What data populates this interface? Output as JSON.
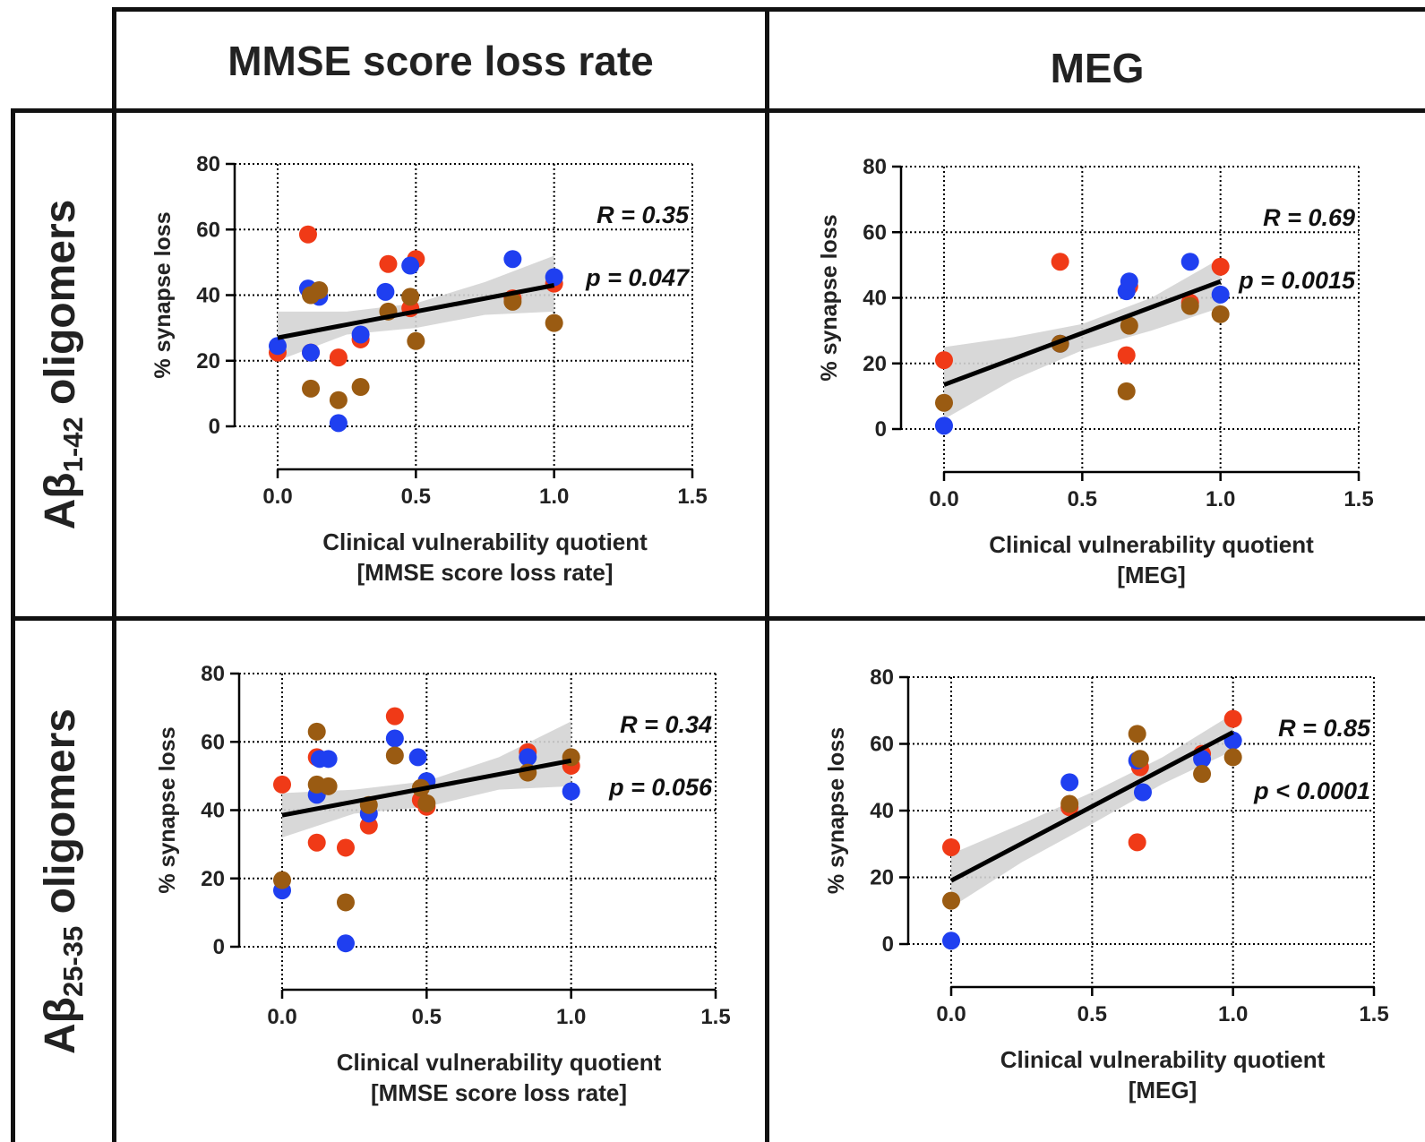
{
  "columns": [
    "MMSE score loss rate",
    "MEG"
  ],
  "rows": [
    {
      "label_prefix": "Aβ",
      "label_sub": "1-42",
      "label_suffix": " oligomers"
    },
    {
      "label_prefix": "Aβ",
      "label_sub": "25-35",
      "label_suffix": " oligomers"
    }
  ],
  "colors": {
    "red": "#f03a17",
    "blue": "#1f3ff0",
    "brown": "#9a5b12",
    "band": "#d4d4d4",
    "line": "#000000"
  },
  "chart_data": [
    {
      "type": "scatter",
      "ylabel": "% synapse loss",
      "xlabel_line1": "Clinical vulnerability quotient",
      "xlabel_line2": "[MMSE score loss rate]",
      "xlim": [
        0,
        1.5
      ],
      "ylim": [
        0,
        80
      ],
      "xticks": [
        "0.0",
        "0.5",
        "1.0",
        "1.5"
      ],
      "yticks": [
        "0",
        "20",
        "40",
        "60",
        "80"
      ],
      "grid": true,
      "r_text": "R = 0.35",
      "p_text": "p = 0.047",
      "fit": {
        "x": [
          0,
          1.0
        ],
        "y": [
          27,
          43
        ]
      },
      "band": {
        "x": [
          0,
          0.25,
          0.5,
          0.75,
          1.0
        ],
        "upper": [
          35,
          35,
          37.5,
          44,
          52
        ],
        "lower": [
          20,
          28,
          30,
          34,
          35
        ]
      },
      "series": [
        {
          "color": "red",
          "x": [
            0,
            0.11,
            0.12,
            0.22,
            0.3,
            0.4,
            0.48,
            0.5,
            0.85,
            1.0
          ],
          "y": [
            22.5,
            58.5,
            22.5,
            21,
            26.5,
            49.5,
            36,
            51,
            39,
            43.5
          ]
        },
        {
          "color": "blue",
          "x": [
            0,
            0.11,
            0.12,
            0.15,
            0.22,
            0.3,
            0.39,
            0.48,
            0.85,
            1.0
          ],
          "y": [
            24.5,
            42,
            22.5,
            39.5,
            1,
            28,
            41,
            49,
            51,
            45.5
          ]
        },
        {
          "color": "brown",
          "x": [
            0.12,
            0.12,
            0.15,
            0.22,
            0.3,
            0.4,
            0.48,
            0.5,
            0.85,
            1.0
          ],
          "y": [
            11.5,
            40,
            41.5,
            8,
            12,
            35,
            39.5,
            26,
            38,
            31.5
          ]
        }
      ]
    },
    {
      "type": "scatter",
      "ylabel": "% synapse loss",
      "xlabel_line1": "Clinical vulnerability quotient",
      "xlabel_line2": "[MEG]",
      "xlim": [
        0,
        1.5
      ],
      "ylim": [
        0,
        80
      ],
      "xticks": [
        "0.0",
        "0.5",
        "1.0",
        "1.5"
      ],
      "yticks": [
        "0",
        "20",
        "40",
        "60",
        "80"
      ],
      "grid": true,
      "r_text": "R = 0.69",
      "p_text": "p = 0.0015",
      "fit": {
        "x": [
          0,
          1.0
        ],
        "y": [
          13.5,
          45
        ]
      },
      "band": {
        "x": [
          0,
          0.25,
          0.5,
          0.75,
          1.0
        ],
        "upper": [
          25,
          28,
          32,
          40,
          52
        ],
        "lower": [
          3,
          15,
          24,
          30,
          37
        ]
      },
      "series": [
        {
          "color": "red",
          "x": [
            0,
            0.42,
            0.66,
            0.67,
            0.89,
            1.0
          ],
          "y": [
            21,
            51,
            22.5,
            43.5,
            38.5,
            49.5
          ]
        },
        {
          "color": "blue",
          "x": [
            0,
            0.42,
            0.66,
            0.67,
            0.89,
            1.0
          ],
          "y": [
            1,
            26,
            42,
            45,
            51,
            41
          ]
        },
        {
          "color": "brown",
          "x": [
            0,
            0.42,
            0.66,
            0.67,
            0.89,
            1.0
          ],
          "y": [
            8,
            26,
            11.5,
            31.5,
            37.5,
            35
          ]
        }
      ]
    },
    {
      "type": "scatter",
      "ylabel": "% synapse loss",
      "xlabel_line1": "Clinical vulnerability quotient",
      "xlabel_line2": "[MMSE score loss rate]",
      "xlim": [
        0,
        1.5
      ],
      "ylim": [
        0,
        80
      ],
      "xticks": [
        "0.0",
        "0.5",
        "1.0",
        "1.5"
      ],
      "yticks": [
        "0",
        "20",
        "40",
        "60",
        "80"
      ],
      "grid": true,
      "r_text": "R = 0.34",
      "p_text": "p = 0.056",
      "fit": {
        "x": [
          0,
          1.0
        ],
        "y": [
          38.5,
          54.5
        ]
      },
      "band": {
        "x": [
          0,
          0.25,
          0.5,
          0.75,
          1.0
        ],
        "upper": [
          45,
          46,
          48.5,
          55.5,
          66
        ],
        "lower": [
          32,
          39,
          41,
          46,
          47
        ]
      },
      "series": [
        {
          "color": "red",
          "x": [
            0,
            0.12,
            0.12,
            0.22,
            0.3,
            0.39,
            0.48,
            0.5,
            0.85,
            1.0
          ],
          "y": [
            47.5,
            30.5,
            55.5,
            29,
            35.5,
            67.5,
            43,
            41,
            57,
            53
          ]
        },
        {
          "color": "blue",
          "x": [
            0,
            0.12,
            0.13,
            0.16,
            0.22,
            0.3,
            0.39,
            0.47,
            0.5,
            0.85,
            1.0
          ],
          "y": [
            16.5,
            44.5,
            55,
            55,
            1,
            39,
            61,
            55.5,
            48.5,
            55.5,
            45.5
          ]
        },
        {
          "color": "brown",
          "x": [
            0,
            0.12,
            0.12,
            0.16,
            0.22,
            0.3,
            0.39,
            0.48,
            0.5,
            0.85,
            1.0
          ],
          "y": [
            19.5,
            47.5,
            63,
            47,
            13,
            41.5,
            56,
            46.5,
            42,
            51,
            55.5
          ]
        }
      ]
    },
    {
      "type": "scatter",
      "ylabel": "% synapse loss",
      "xlabel_line1": "Clinical vulnerability quotient",
      "xlabel_line2": "[MEG]",
      "xlim": [
        0,
        1.5
      ],
      "ylim": [
        0,
        80
      ],
      "xticks": [
        "0.0",
        "0.5",
        "1.0",
        "1.5"
      ],
      "yticks": [
        "0",
        "20",
        "40",
        "60",
        "80"
      ],
      "grid": true,
      "r_text": "R = 0.85",
      "p_text": "p < 0.0001",
      "fit": {
        "x": [
          0,
          1.0
        ],
        "y": [
          19,
          63.5
        ]
      },
      "band": {
        "x": [
          0,
          0.25,
          0.5,
          0.75,
          1.0
        ],
        "upper": [
          27,
          36,
          45.5,
          56,
          69
        ],
        "lower": [
          11,
          24.5,
          36,
          48,
          58
        ]
      },
      "series": [
        {
          "color": "red",
          "x": [
            0,
            0.42,
            0.66,
            0.67,
            0.89,
            1.0
          ],
          "y": [
            29,
            41,
            30.5,
            53,
            57,
            67.5
          ]
        },
        {
          "color": "blue",
          "x": [
            0,
            0.42,
            0.66,
            0.68,
            0.89,
            1.0
          ],
          "y": [
            1,
            48.5,
            55,
            45.5,
            55.5,
            61
          ]
        },
        {
          "color": "brown",
          "x": [
            0,
            0.42,
            0.66,
            0.67,
            0.89,
            1.0
          ],
          "y": [
            13,
            42,
            63,
            55.5,
            51,
            56
          ]
        }
      ]
    }
  ]
}
